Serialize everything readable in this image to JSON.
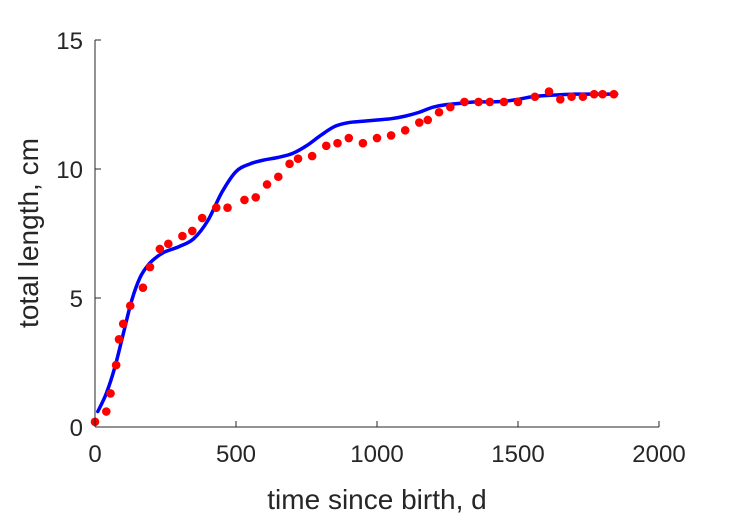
{
  "chart_data": {
    "type": "scatter",
    "xlabel": "time since birth, d",
    "ylabel": "total length, cm",
    "xlim": [
      0,
      2000
    ],
    "ylim": [
      0,
      15
    ],
    "xticks": [
      0,
      500,
      1000,
      1500,
      2000
    ],
    "yticks": [
      0,
      5,
      10,
      15
    ],
    "xtick_labels": [
      "0",
      "500",
      "1000",
      "1500",
      "2000"
    ],
    "ytick_labels": [
      "0",
      "5",
      "10",
      "15"
    ],
    "grid": false,
    "legend": "none",
    "series": [
      {
        "kind": "points",
        "color": "#ff0000",
        "x": [
          0,
          40,
          55,
          75,
          85,
          100,
          125,
          170,
          195,
          230,
          260,
          310,
          345,
          380,
          430,
          470,
          530,
          570,
          610,
          650,
          690,
          720,
          770,
          820,
          860,
          900,
          950,
          1000,
          1050,
          1100,
          1150,
          1180,
          1220,
          1260,
          1310,
          1360,
          1400,
          1450,
          1500,
          1560,
          1610,
          1650,
          1690,
          1730,
          1770,
          1800,
          1840
        ],
        "y": [
          0.2,
          0.6,
          1.3,
          2.4,
          3.4,
          4.0,
          4.7,
          5.4,
          6.2,
          6.9,
          7.1,
          7.4,
          7.6,
          8.1,
          8.5,
          8.5,
          8.8,
          8.9,
          9.4,
          9.7,
          10.2,
          10.4,
          10.5,
          10.9,
          11.0,
          11.2,
          11.0,
          11.2,
          11.3,
          11.5,
          11.8,
          11.9,
          12.2,
          12.4,
          12.6,
          12.6,
          12.6,
          12.6,
          12.6,
          12.8,
          13.0,
          12.7,
          12.8,
          12.8,
          12.9,
          12.9,
          12.9
        ]
      },
      {
        "kind": "line",
        "color": "#0000ff",
        "x": [
          10,
          40,
          70,
          100,
          130,
          160,
          190,
          220,
          250,
          300,
          350,
          400,
          450,
          500,
          550,
          600,
          650,
          700,
          750,
          800,
          850,
          900,
          950,
          1000,
          1050,
          1100,
          1150,
          1200,
          1250,
          1300,
          1350,
          1400,
          1450,
          1500,
          1550,
          1600,
          1650,
          1700,
          1750,
          1800,
          1850
        ],
        "y": [
          0.6,
          1.3,
          2.3,
          3.6,
          4.9,
          5.8,
          6.3,
          6.6,
          6.8,
          7.0,
          7.3,
          8.0,
          9.1,
          9.9,
          10.2,
          10.35,
          10.45,
          10.6,
          10.9,
          11.3,
          11.65,
          11.8,
          11.85,
          11.9,
          11.95,
          12.05,
          12.2,
          12.4,
          12.5,
          12.55,
          12.6,
          12.6,
          12.62,
          12.7,
          12.8,
          12.85,
          12.88,
          12.9,
          12.9,
          12.9,
          12.9
        ]
      }
    ]
  }
}
